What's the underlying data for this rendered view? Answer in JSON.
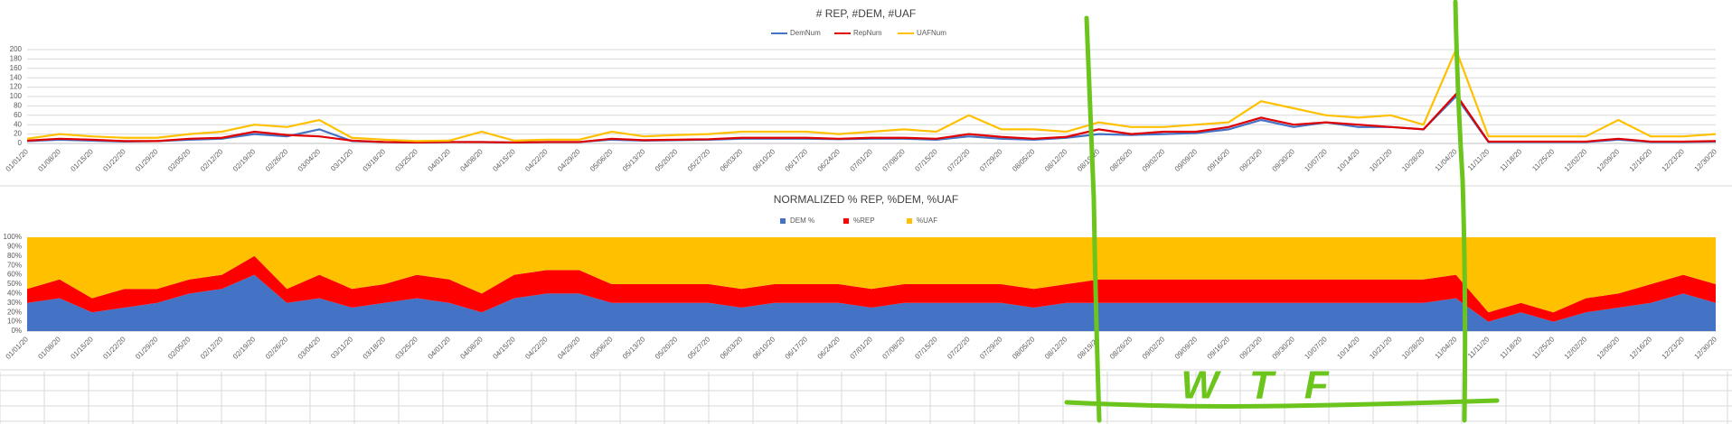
{
  "chart_data": [
    {
      "type": "line",
      "title": "# REP, #DEM, #UAF",
      "categories": [
        "01/01/20",
        "01/08/20",
        "01/15/20",
        "01/22/20",
        "01/29/20",
        "02/05/20",
        "02/12/20",
        "02/19/20",
        "02/26/20",
        "03/04/20",
        "03/11/20",
        "03/18/20",
        "03/25/20",
        "04/01/20",
        "04/08/20",
        "04/15/20",
        "04/22/20",
        "04/29/20",
        "05/06/20",
        "05/13/20",
        "05/20/20",
        "05/27/20",
        "06/03/20",
        "06/10/20",
        "06/17/20",
        "06/24/20",
        "07/01/20",
        "07/08/20",
        "07/15/20",
        "07/22/20",
        "07/29/20",
        "08/05/20",
        "08/12/20",
        "08/19/20",
        "08/26/20",
        "09/02/20",
        "09/09/20",
        "09/16/20",
        "09/23/20",
        "09/30/20",
        "10/07/20",
        "10/14/20",
        "10/21/20",
        "10/28/20",
        "11/04/20",
        "11/11/20",
        "11/18/20",
        "11/25/20",
        "12/02/20",
        "12/09/20",
        "12/16/20",
        "12/23/20",
        "12/30/20"
      ],
      "series": [
        {
          "name": "DemNum",
          "color": "#4472c4",
          "values": [
            5,
            8,
            6,
            4,
            5,
            8,
            10,
            20,
            15,
            30,
            5,
            3,
            2,
            3,
            3,
            2,
            3,
            3,
            8,
            6,
            7,
            8,
            10,
            10,
            10,
            9,
            10,
            10,
            8,
            15,
            10,
            8,
            12,
            20,
            18,
            20,
            22,
            30,
            50,
            35,
            45,
            35,
            35,
            30,
            100,
            3,
            3,
            3,
            3,
            8,
            3,
            3,
            4
          ]
        },
        {
          "name": "RepNum",
          "color": "#e00000",
          "values": [
            6,
            10,
            8,
            5,
            5,
            10,
            12,
            25,
            18,
            15,
            6,
            3,
            2,
            3,
            3,
            2,
            3,
            3,
            10,
            7,
            8,
            9,
            12,
            12,
            12,
            10,
            12,
            12,
            10,
            20,
            14,
            10,
            14,
            30,
            20,
            25,
            25,
            35,
            55,
            40,
            45,
            40,
            35,
            30,
            105,
            4,
            4,
            4,
            4,
            10,
            4,
            4,
            5
          ]
        },
        {
          "name": "UAFNum",
          "color": "#ffc000",
          "values": [
            10,
            20,
            15,
            12,
            12,
            20,
            25,
            40,
            35,
            50,
            12,
            8,
            5,
            6,
            25,
            6,
            8,
            8,
            25,
            15,
            18,
            20,
            25,
            25,
            25,
            20,
            25,
            30,
            25,
            60,
            30,
            30,
            25,
            45,
            35,
            35,
            40,
            45,
            90,
            75,
            60,
            55,
            60,
            40,
            200,
            15,
            15,
            15,
            15,
            50,
            15,
            15,
            20
          ]
        }
      ],
      "ylim": [
        0,
        200
      ],
      "yticks": [
        0,
        20,
        40,
        60,
        80,
        100,
        120,
        140,
        160,
        180,
        200
      ],
      "grid": true,
      "legend": "top"
    },
    {
      "type": "stacked_area",
      "title": "NORMALIZED % REP, %DEM, %UAF",
      "categories": [
        "01/01/20",
        "01/08/20",
        "01/15/20",
        "01/22/20",
        "01/29/20",
        "02/05/20",
        "02/12/20",
        "02/19/20",
        "02/26/20",
        "03/04/20",
        "03/11/20",
        "03/18/20",
        "03/25/20",
        "04/01/20",
        "04/08/20",
        "04/15/20",
        "04/22/20",
        "04/29/20",
        "05/06/20",
        "05/13/20",
        "05/20/20",
        "05/27/20",
        "06/03/20",
        "06/10/20",
        "06/17/20",
        "06/24/20",
        "07/01/20",
        "07/08/20",
        "07/15/20",
        "07/22/20",
        "07/29/20",
        "08/05/20",
        "08/12/20",
        "08/19/20",
        "08/26/20",
        "09/02/20",
        "09/09/20",
        "09/16/20",
        "09/23/20",
        "09/30/20",
        "10/07/20",
        "10/14/20",
        "10/21/20",
        "10/28/20",
        "11/04/20",
        "11/11/20",
        "11/18/20",
        "11/25/20",
        "12/02/20",
        "12/09/20",
        "12/16/20",
        "12/23/20",
        "12/30/20"
      ],
      "series": [
        {
          "name": "DEM %",
          "color": "#4472c4",
          "values": [
            30,
            35,
            20,
            25,
            30,
            40,
            45,
            60,
            30,
            35,
            25,
            30,
            35,
            30,
            20,
            35,
            40,
            40,
            30,
            30,
            30,
            30,
            25,
            30,
            30,
            30,
            25,
            30,
            30,
            30,
            30,
            25,
            30,
            30,
            30,
            30,
            30,
            30,
            30,
            30,
            30,
            30,
            30,
            30,
            35,
            10,
            20,
            10,
            20,
            25,
            30,
            40,
            30
          ]
        },
        {
          "name": "%REP",
          "color": "#ff0000",
          "values": [
            15,
            20,
            15,
            20,
            15,
            15,
            15,
            20,
            15,
            25,
            20,
            20,
            25,
            25,
            20,
            25,
            25,
            25,
            20,
            20,
            20,
            20,
            20,
            20,
            20,
            20,
            20,
            20,
            20,
            20,
            20,
            20,
            20,
            25,
            25,
            25,
            25,
            25,
            25,
            25,
            25,
            25,
            25,
            25,
            25,
            10,
            10,
            10,
            15,
            15,
            20,
            20,
            20
          ]
        },
        {
          "name": "%UAF",
          "color": "#ffc000",
          "values": [
            55,
            45,
            65,
            55,
            55,
            45,
            40,
            20,
            55,
            40,
            55,
            50,
            40,
            45,
            60,
            40,
            35,
            35,
            50,
            50,
            50,
            50,
            55,
            50,
            50,
            50,
            55,
            50,
            50,
            50,
            50,
            55,
            50,
            45,
            45,
            45,
            45,
            45,
            45,
            45,
            45,
            45,
            45,
            45,
            40,
            80,
            70,
            80,
            65,
            60,
            50,
            40,
            50
          ]
        }
      ],
      "ylim": [
        0,
        100
      ],
      "yticks": [
        {
          "value": 0,
          "label": "0%"
        },
        {
          "value": 10,
          "label": "10%"
        },
        {
          "value": 20,
          "label": "20%"
        },
        {
          "value": 30,
          "label": "30%"
        },
        {
          "value": 40,
          "label": "40%"
        },
        {
          "value": 50,
          "label": "50%"
        },
        {
          "value": 60,
          "label": "60%"
        },
        {
          "value": 70,
          "label": "70%"
        },
        {
          "value": 80,
          "label": "80%"
        },
        {
          "value": 90,
          "label": "90%"
        },
        {
          "value": 100,
          "label": "100%"
        }
      ],
      "grid": false,
      "legend": "top"
    }
  ],
  "annotation": {
    "text": "WTF"
  }
}
